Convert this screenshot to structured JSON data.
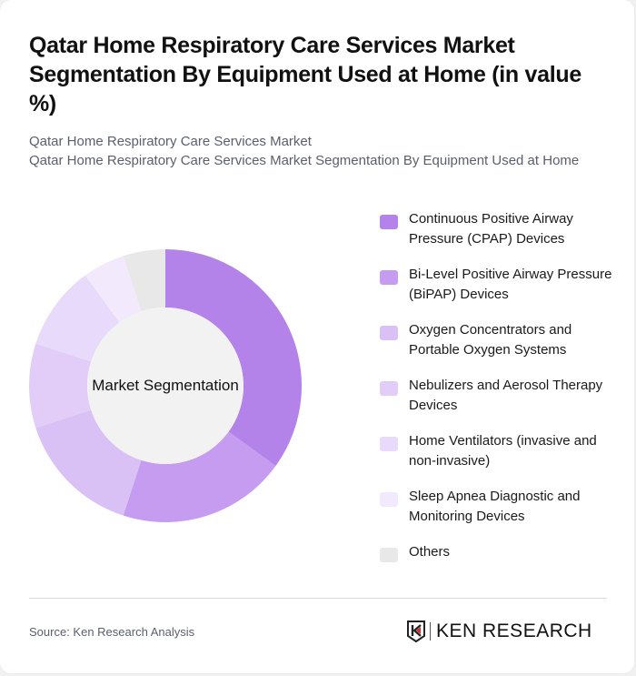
{
  "header": {
    "title": "Qatar Home Respiratory Care Services Market Segmentation By Equipment Used at Home (in value %)",
    "subtitle_line1": "Qatar Home Respiratory Care Services Market",
    "subtitle_line2": "Qatar Home Respiratory Care Services Market Segmentation By Equipment Used at Home"
  },
  "chart": {
    "center_label": "Market Segmentation"
  },
  "legend": {
    "items": [
      {
        "label": "Continuous Positive Airway Pressure (CPAP) Devices",
        "color": "#b483ea"
      },
      {
        "label": "Bi-Level Positive Airway Pressure (BiPAP) Devices",
        "color": "#c59cef"
      },
      {
        "label": "Oxygen Concentrators and Portable Oxygen Systems",
        "color": "#d9c1f6"
      },
      {
        "label": "Nebulizers and Aerosol Therapy Devices",
        "color": "#e1cdf7"
      },
      {
        "label": "Home Ventilators (invasive and non-invasive)",
        "color": "#e8dafa"
      },
      {
        "label": "Sleep Apnea Diagnostic and Monitoring Devices",
        "color": "#f2eafc"
      },
      {
        "label": "Others",
        "color": "#e8e8e8"
      }
    ]
  },
  "footer": {
    "source": "Source: Ken Research Analysis",
    "logo_text": "KEN RESEARCH"
  },
  "chart_data": {
    "type": "pie",
    "subtype": "donut",
    "title": "Qatar Home Respiratory Care Services Market Segmentation By Equipment Used at Home (in value %)",
    "center_label": "Market Segmentation",
    "categories": [
      "Continuous Positive Airway Pressure (CPAP) Devices",
      "Bi-Level Positive Airway Pressure (BiPAP) Devices",
      "Oxygen Concentrators and Portable Oxygen Systems",
      "Nebulizers and Aerosol Therapy Devices",
      "Home Ventilators (invasive and non-invasive)",
      "Sleep Apnea Diagnostic and Monitoring Devices",
      "Others"
    ],
    "values": [
      35,
      20,
      15,
      10,
      10,
      5,
      5
    ],
    "colors": [
      "#b483ea",
      "#c59cef",
      "#d9c1f6",
      "#e1cdf7",
      "#e8dafa",
      "#f2eafc",
      "#e8e8e8"
    ],
    "unit": "%",
    "legend_position": "right"
  }
}
